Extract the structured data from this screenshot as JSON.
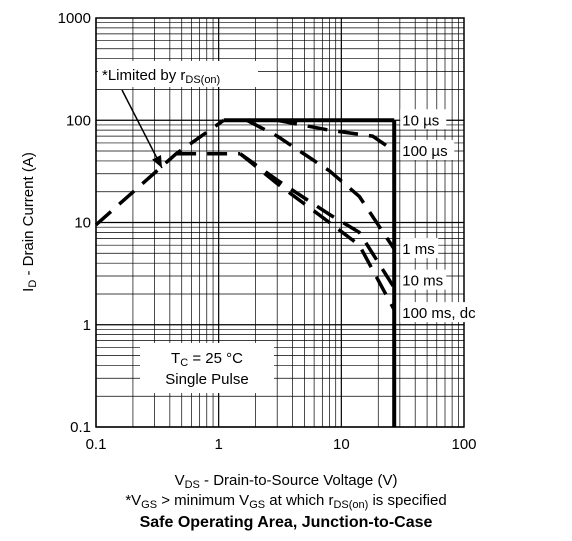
{
  "chart_data": {
    "type": "line",
    "title": "Safe Operating Area, Junction-to-Case",
    "xlabel": {
      "pre": "V",
      "sub": "DS",
      "post": " - Drain-to-Source Voltage (V)"
    },
    "ylabel": {
      "pre": "I",
      "sub": "D",
      "post": " - Drain Current (A)"
    },
    "xscale": "log",
    "yscale": "log",
    "xlim": [
      0.1,
      100
    ],
    "ylim": [
      0.1,
      1000
    ],
    "grid": true,
    "x_ticks": [
      "0.1",
      "1",
      "10",
      "100"
    ],
    "y_ticks": [
      "0.1",
      "1",
      "10",
      "100",
      "1000"
    ],
    "series": [
      {
        "name": "10 µs",
        "style": "solid",
        "points": [
          [
            1.1,
            100
          ],
          [
            27,
            100
          ]
        ]
      },
      {
        "name": "100 µs",
        "style": "dashed",
        "points": [
          [
            3,
            100
          ],
          [
            8,
            80
          ],
          [
            18,
            70
          ],
          [
            27,
            50
          ]
        ]
      },
      {
        "name": "1 ms",
        "style": "dashed",
        "points": [
          [
            1.7,
            100
          ],
          [
            3,
            70
          ],
          [
            8,
            32
          ],
          [
            14,
            18
          ],
          [
            27,
            5.5
          ]
        ]
      },
      {
        "name": "10 ms",
        "style": "dashed",
        "points": [
          [
            1.5,
            47
          ],
          [
            3,
            26
          ],
          [
            8,
            12
          ],
          [
            14,
            8
          ],
          [
            27,
            2.3
          ]
        ]
      },
      {
        "name": "100 ms, dc",
        "style": "dashed",
        "points": [
          [
            1.5,
            47
          ],
          [
            3,
            24
          ],
          [
            8,
            10
          ],
          [
            14,
            6
          ],
          [
            27,
            1.4
          ]
        ]
      },
      {
        "name": "Limited by rDS(on)",
        "style": "dashed",
        "points": [
          [
            0.1,
            9.5
          ],
          [
            0.45,
            47
          ],
          [
            1.1,
            100
          ]
        ]
      },
      {
        "name": "dc",
        "style": "dashed",
        "points": [
          [
            0.45,
            47
          ],
          [
            1.5,
            47
          ]
        ]
      },
      {
        "name": "VDS limit",
        "style": "solid",
        "points": [
          [
            27,
            100
          ],
          [
            27,
            0.1
          ]
        ]
      }
    ],
    "series_labels": [
      {
        "text": "10 µs",
        "x": 27,
        "y": 100
      },
      {
        "text": "100 µs",
        "x": 27,
        "y": 50
      },
      {
        "text": "1 ms",
        "x": 27,
        "y": 5.5
      },
      {
        "text": "10 ms",
        "x": 27,
        "y": 2.7
      },
      {
        "text": "100 ms, dc",
        "x": 27,
        "y": 1.3
      }
    ],
    "annotations": {
      "limited": {
        "pre": "*Limited by r",
        "sub": "DS(on)",
        "post": ""
      },
      "conditions_line1": {
        "pre": "T",
        "sub": "C",
        "post": " = 25 °C"
      },
      "conditions_line2": "Single Pulse"
    },
    "footnote": {
      "a": "*V",
      "a_sub": "GS",
      "b": " > minimum V",
      "b_sub": "GS",
      "c": " at which r",
      "c_sub": "DS(on)",
      "d": " is specified"
    }
  }
}
